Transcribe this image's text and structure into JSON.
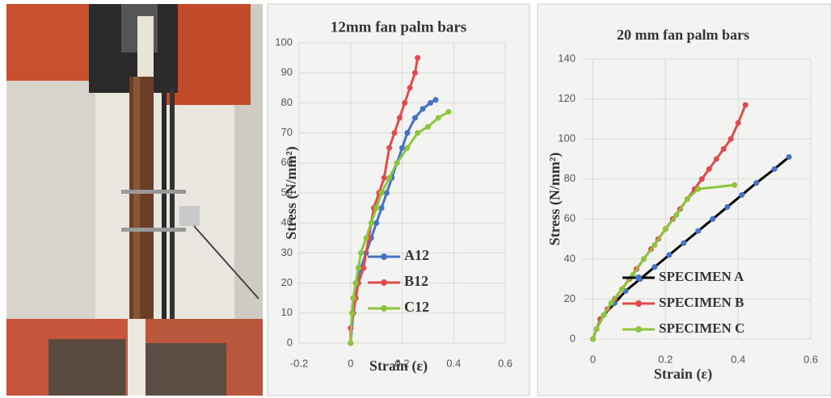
{
  "chart_data": [
    {
      "type": "line",
      "title": "12mm fan palm bars",
      "x_label": "Strain (ε)",
      "y_label": "Stress (N/mm²)",
      "xlim": [
        -0.2,
        0.6
      ],
      "xticks": [
        -0.2,
        0,
        0.2,
        0.4,
        0.6
      ],
      "ylim": [
        0,
        100
      ],
      "yticks": [
        0,
        10,
        20,
        30,
        40,
        50,
        60,
        70,
        80,
        90,
        100
      ],
      "grid": true,
      "legend": "lower right",
      "series": [
        {
          "name": "A12",
          "color": "#4472c4",
          "x": [
            0,
            0.01,
            0.02,
            0.04,
            0.06,
            0.08,
            0.1,
            0.12,
            0.14,
            0.16,
            0.18,
            0.2,
            0.22,
            0.25,
            0.28,
            0.31,
            0.33
          ],
          "values": [
            0,
            10,
            20,
            25,
            30,
            35,
            40,
            45,
            50,
            55,
            60,
            65,
            70,
            75,
            78,
            80,
            81
          ]
        },
        {
          "name": "B12",
          "color": "#e04b4b",
          "x": [
            0,
            0,
            0.01,
            0.02,
            0.03,
            0.05,
            0.07,
            0.09,
            0.11,
            0.13,
            0.15,
            0.17,
            0.19,
            0.21,
            0.23,
            0.25,
            0.26
          ],
          "values": [
            0,
            5,
            10,
            15,
            20,
            25,
            35,
            45,
            50,
            55,
            65,
            70,
            75,
            80,
            85,
            90,
            95
          ]
        },
        {
          "name": "C12",
          "color": "#8cc63f",
          "x": [
            0,
            0.005,
            0.01,
            0.02,
            0.03,
            0.04,
            0.06,
            0.08,
            0.1,
            0.12,
            0.15,
            0.18,
            0.22,
            0.26,
            0.3,
            0.34,
            0.38
          ],
          "values": [
            0,
            10,
            15,
            20,
            25,
            30,
            35,
            40,
            45,
            50,
            55,
            60,
            65,
            70,
            72,
            75,
            77
          ]
        }
      ]
    },
    {
      "type": "line",
      "title": "20 mm fan palm bars",
      "x_label": "Strain (ε)",
      "y_label": "Stress (N/mm²)",
      "xlim": [
        -0.03,
        0.6
      ],
      "xticks": [
        0,
        0.2,
        0.4,
        0.6
      ],
      "ylim": [
        0,
        140
      ],
      "yticks": [
        0,
        20,
        40,
        60,
        80,
        100,
        120,
        140
      ],
      "grid": true,
      "legend": "lower right",
      "series": [
        {
          "name": "SPECIMEN A",
          "color": "#4472c4",
          "line_color": "#000000",
          "x": [
            0,
            0.01,
            0.03,
            0.06,
            0.09,
            0.13,
            0.17,
            0.21,
            0.25,
            0.29,
            0.33,
            0.37,
            0.41,
            0.45,
            0.5,
            0.54
          ],
          "values": [
            0,
            5,
            12,
            18,
            24,
            30,
            36,
            42,
            48,
            54,
            60,
            66,
            72,
            78,
            85,
            91
          ]
        },
        {
          "name": "SPECIMEN B",
          "color": "#e04b4b",
          "x": [
            0,
            0.01,
            0.02,
            0.04,
            0.06,
            0.08,
            0.1,
            0.12,
            0.14,
            0.16,
            0.18,
            0.2,
            0.22,
            0.24,
            0.26,
            0.28,
            0.3,
            0.32,
            0.34,
            0.36,
            0.38,
            0.4,
            0.42
          ],
          "values": [
            0,
            5,
            10,
            15,
            20,
            25,
            30,
            35,
            40,
            45,
            50,
            55,
            60,
            65,
            70,
            75,
            80,
            85,
            90,
            95,
            100,
            108,
            117
          ]
        },
        {
          "name": "SPECIMEN C",
          "color": "#8cc63f",
          "x": [
            0,
            0.01,
            0.03,
            0.05,
            0.08,
            0.11,
            0.14,
            0.17,
            0.2,
            0.23,
            0.26,
            0.29,
            0.39
          ],
          "values": [
            0,
            5,
            12,
            18,
            25,
            32,
            40,
            47,
            55,
            62,
            70,
            75,
            77
          ]
        }
      ]
    }
  ]
}
